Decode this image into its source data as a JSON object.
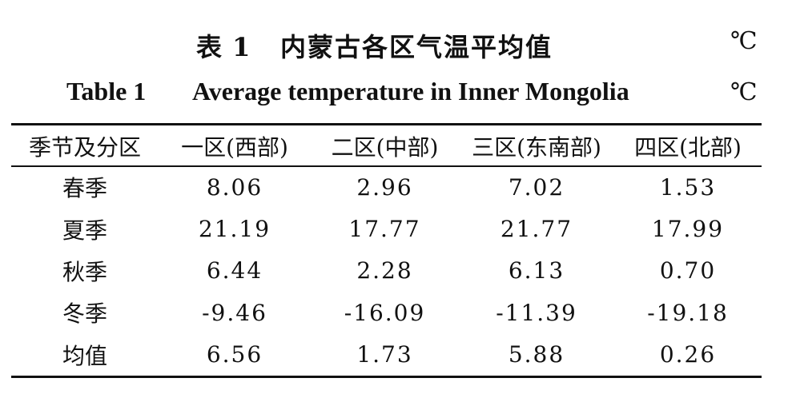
{
  "title_cn": {
    "label": "表 1",
    "text": "内蒙古各区气温平均值",
    "unit": "℃"
  },
  "title_en": {
    "label": "Table 1",
    "text": "Average temperature in Inner Mongolia",
    "unit": "℃"
  },
  "table": {
    "headers": [
      "季节及分区",
      "一区(西部)",
      "二区(中部)",
      "三区(东南部)",
      "四区(北部)"
    ],
    "rows": [
      [
        "春季",
        "8.06",
        "2.96",
        "7.02",
        "1.53"
      ],
      [
        "夏季",
        "21.19",
        "17.77",
        "21.77",
        "17.99"
      ],
      [
        "秋季",
        "6.44",
        "2.28",
        "6.13",
        "0.70"
      ],
      [
        "冬季",
        "-9.46",
        "-16.09",
        "-11.39",
        "-19.18"
      ],
      [
        "均值",
        "6.56",
        "1.73",
        "5.88",
        "0.26"
      ]
    ]
  }
}
